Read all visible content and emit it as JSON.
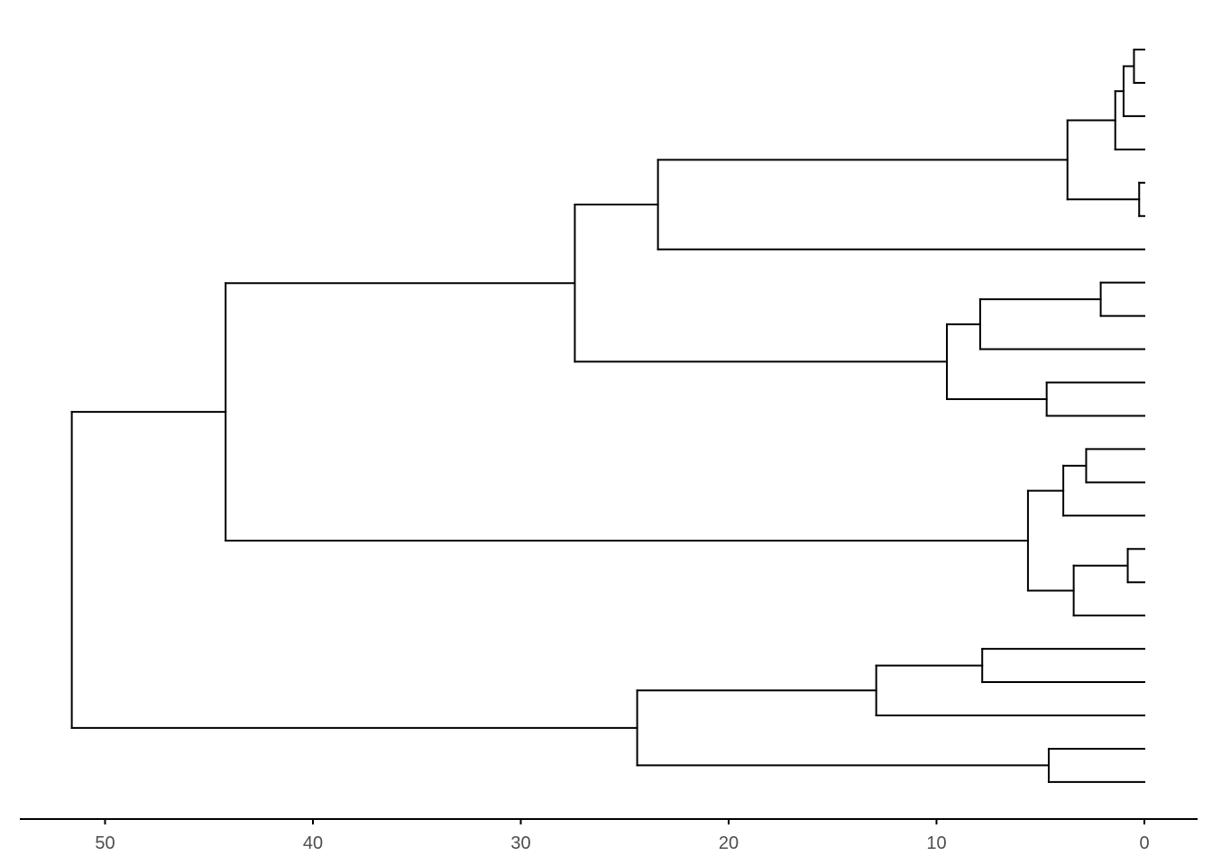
{
  "chart_data": {
    "type": "dendrogram",
    "title": "",
    "xlabel": "",
    "ylabel": "",
    "orientation": "leaves-right",
    "x_reversed": true,
    "xlim": [
      0,
      54
    ],
    "grid": false,
    "line_color": "#000000",
    "axis_color": "#000000",
    "tick_label_color": "#4d4d4d",
    "x_ticks": [
      {
        "value": 50,
        "label": "50"
      },
      {
        "value": 40,
        "label": "40"
      },
      {
        "value": 30,
        "label": "30"
      },
      {
        "value": 20,
        "label": "20"
      },
      {
        "value": 10,
        "label": "10"
      },
      {
        "value": 0,
        "label": "0"
      }
    ],
    "leaf_count": 23,
    "tree": {
      "h": 51.6,
      "children": [
        {
          "h": 44.2,
          "children": [
            {
              "h": 27.4,
              "children": [
                {
                  "h": 23.4,
                  "children": [
                    {
                      "h": 3.7,
                      "children": [
                        {
                          "h": 1.4,
                          "children": [
                            {
                              "h": 1.0,
                              "children": [
                                {
                                  "h": 0.5,
                                  "children": [
                                    {
                                      "leaf": 0
                                    },
                                    {
                                      "leaf": 1
                                    }
                                  ]
                                },
                                {
                                  "leaf": 2
                                }
                              ]
                            },
                            {
                              "leaf": 3
                            }
                          ]
                        },
                        {
                          "h": 0.25,
                          "children": [
                            {
                              "leaf": 4
                            },
                            {
                              "leaf": 5
                            }
                          ]
                        }
                      ]
                    },
                    {
                      "leaf": 6
                    }
                  ]
                },
                {
                  "h": 9.5,
                  "children": [
                    {
                      "h": 7.9,
                      "children": [
                        {
                          "h": 2.1,
                          "children": [
                            {
                              "leaf": 7
                            },
                            {
                              "leaf": 8
                            }
                          ]
                        },
                        {
                          "leaf": 9
                        }
                      ]
                    },
                    {
                      "h": 4.7,
                      "children": [
                        {
                          "leaf": 10
                        },
                        {
                          "leaf": 11
                        }
                      ]
                    }
                  ]
                }
              ]
            },
            {
              "h": 5.6,
              "children": [
                {
                  "h": 3.9,
                  "children": [
                    {
                      "h": 2.8,
                      "children": [
                        {
                          "leaf": 12
                        },
                        {
                          "leaf": 13
                        }
                      ]
                    },
                    {
                      "leaf": 14
                    }
                  ]
                },
                {
                  "h": 3.4,
                  "children": [
                    {
                      "h": 0.8,
                      "children": [
                        {
                          "leaf": 15
                        },
                        {
                          "leaf": 16
                        }
                      ]
                    },
                    {
                      "leaf": 17
                    }
                  ]
                }
              ]
            }
          ]
        },
        {
          "h": 24.4,
          "children": [
            {
              "h": 12.9,
              "children": [
                {
                  "h": 7.8,
                  "children": [
                    {
                      "leaf": 18
                    },
                    {
                      "leaf": 19
                    }
                  ]
                },
                {
                  "leaf": 20
                }
              ]
            },
            {
              "h": 4.6,
              "children": [
                {
                  "leaf": 21
                },
                {
                  "leaf": 22
                }
              ]
            }
          ]
        }
      ]
    }
  }
}
